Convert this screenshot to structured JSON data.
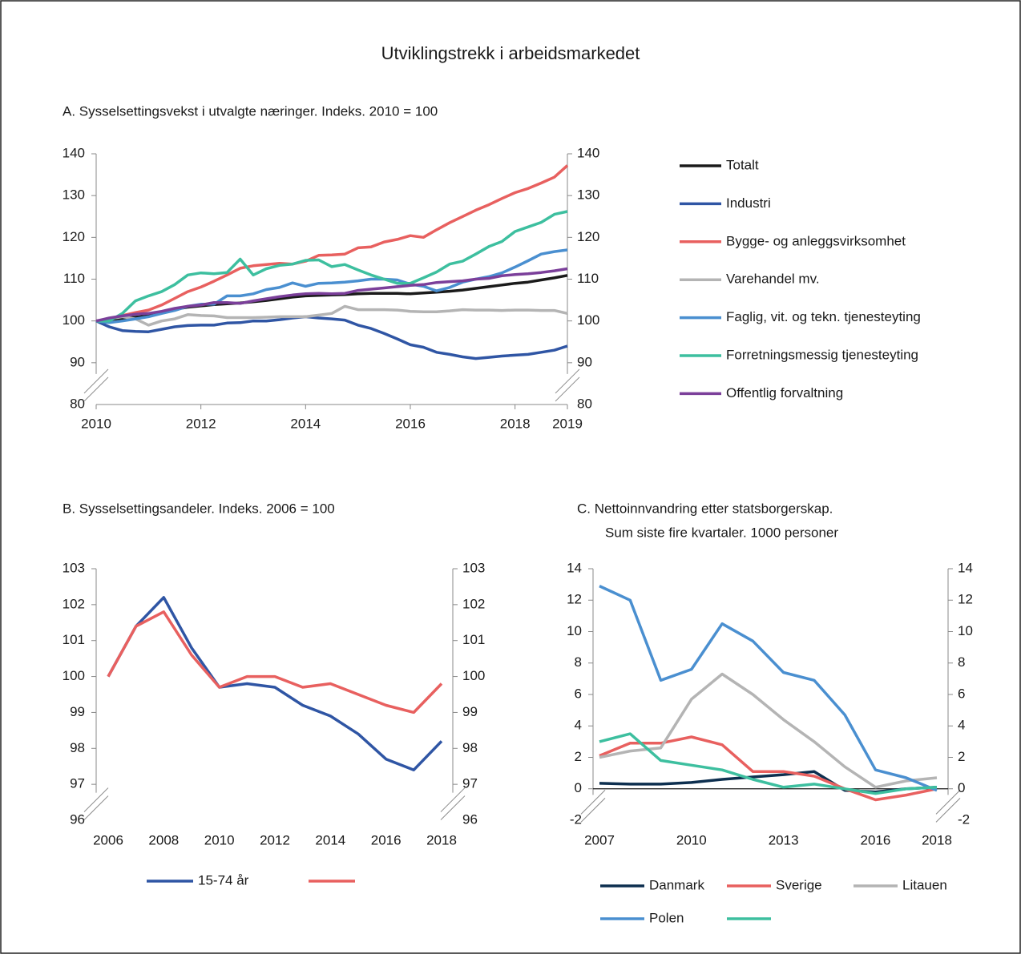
{
  "title": "Utviklingstrekk i arbeidsmarkedet",
  "chart_data": [
    {
      "type": "line",
      "title": "A.  Sysselsettingsvekst i utvalgte næringer. Indeks. 2010 = 100",
      "x": [
        2010,
        2010.25,
        2010.5,
        2010.75,
        2011,
        2011.25,
        2011.5,
        2011.75,
        2012,
        2012.25,
        2012.5,
        2012.75,
        2013,
        2013.25,
        2013.5,
        2013.75,
        2014,
        2014.25,
        2014.5,
        2014.75,
        2015,
        2015.25,
        2015.5,
        2015.75,
        2016,
        2016.25,
        2016.5,
        2016.75,
        2017,
        2017.25,
        2017.5,
        2017.75,
        2018,
        2018.25,
        2018.5,
        2018.75,
        2019
      ],
      "xlim": [
        2010,
        2019
      ],
      "xticks": [
        2010,
        2012,
        2014,
        2016,
        2018,
        2019
      ],
      "ylim": [
        80,
        140
      ],
      "yticks": [
        80,
        90,
        100,
        110,
        120,
        130,
        140
      ],
      "y2lim": [
        80,
        140
      ],
      "y2ticks": [
        80,
        90,
        100,
        110,
        120,
        130,
        140
      ],
      "series": [
        {
          "name": "Totalt",
          "color": "#1a1a1a",
          "values": [
            100,
            100.3,
            100.6,
            100.9,
            101.2,
            102,
            102.8,
            103.3,
            103.6,
            103.9,
            104.1,
            104.3,
            104.6,
            104.9,
            105.3,
            105.7,
            106,
            106.1,
            106.2,
            106.3,
            106.5,
            106.6,
            106.6,
            106.6,
            106.5,
            106.7,
            106.9,
            107.1,
            107.4,
            107.8,
            108.2,
            108.6,
            109,
            109.3,
            109.8,
            110.3,
            110.9
          ]
        },
        {
          "name": "Industri",
          "color": "#2f55a4",
          "values": [
            100,
            98.6,
            97.7,
            97.5,
            97.4,
            98,
            98.6,
            98.9,
            99,
            99,
            99.5,
            99.6,
            100,
            100,
            100.3,
            100.7,
            101,
            100.7,
            100.5,
            100.2,
            99,
            98.2,
            97,
            95.7,
            94.3,
            93.7,
            92.5,
            92,
            91.4,
            91,
            91.3,
            91.6,
            91.8,
            92,
            92.5,
            93,
            94
          ]
        },
        {
          "name": "Bygge- og anleggsvirksomhet",
          "color": "#e8605f",
          "values": [
            100,
            100.5,
            101.3,
            102,
            102.6,
            103.8,
            105.4,
            107,
            108.1,
            109.5,
            111,
            112.6,
            113.2,
            113.5,
            113.8,
            113.6,
            114.3,
            115.7,
            115.8,
            116,
            117.5,
            117.7,
            118.9,
            119.5,
            120.4,
            120,
            121.8,
            123.5,
            125,
            126.5,
            127.8,
            129.3,
            130.7,
            131.7,
            133,
            134.4,
            137.2
          ]
        },
        {
          "name": "Varehandel mv.",
          "color": "#b4b4b4",
          "values": [
            100,
            100.5,
            101,
            100.5,
            99,
            100,
            100.5,
            101.5,
            101.3,
            101.2,
            100.8,
            100.8,
            100.8,
            100.9,
            101,
            101,
            101,
            101.4,
            101.8,
            103.5,
            102.7,
            102.7,
            102.7,
            102.6,
            102.3,
            102.2,
            102.2,
            102.4,
            102.7,
            102.6,
            102.6,
            102.5,
            102.6,
            102.6,
            102.5,
            102.5,
            101.8
          ]
        },
        {
          "name": "Faglig, vit. og tekn. tjenesteyting",
          "color": "#4a8fd0",
          "values": [
            100,
            99.6,
            100,
            100.5,
            101,
            101.8,
            102.5,
            103.5,
            104,
            104,
            106,
            106,
            106.5,
            107.5,
            108,
            109.1,
            108.3,
            109,
            109.1,
            109.3,
            109.6,
            110,
            110,
            109.8,
            108.8,
            108.3,
            107.2,
            108,
            109.3,
            110,
            110.6,
            111.5,
            112.9,
            114.4,
            116,
            116.6,
            117
          ]
        },
        {
          "name": "Forretningsmessig tjenesteyting",
          "color": "#3dbf9f",
          "values": [
            100,
            100,
            101.8,
            104.8,
            106,
            107,
            108.7,
            111,
            111.5,
            111.3,
            111.6,
            114.8,
            111,
            112.5,
            113.3,
            113.6,
            114.5,
            114.6,
            113,
            113.5,
            112.2,
            111,
            110,
            109,
            109,
            110.3,
            111.7,
            113.6,
            114.3,
            116,
            117.8,
            119,
            121.4,
            122.5,
            123.6,
            125.5,
            126.2
          ]
        },
        {
          "name": "Offentlig forvaltning",
          "color": "#7b3f9a",
          "values": [
            100,
            100.7,
            101.2,
            101.6,
            101.8,
            102.3,
            103,
            103.5,
            103.8,
            104.4,
            104.4,
            104.2,
            104.8,
            105.3,
            105.8,
            106.2,
            106.5,
            106.6,
            106.5,
            106.6,
            107.3,
            107.6,
            107.9,
            108.2,
            108.5,
            108.7,
            109.2,
            109.4,
            109.6,
            110,
            110.2,
            110.8,
            111.1,
            111.3,
            111.6,
            112,
            112.5
          ]
        }
      ]
    },
    {
      "type": "line",
      "title": "B. Sysselsettingsandeler. Indeks. 2006 = 100",
      "x": [
        2006,
        2007,
        2008,
        2009,
        2010,
        2011,
        2012,
        2013,
        2014,
        2015,
        2016,
        2017,
        2018
      ],
      "xlim": [
        2006,
        2018
      ],
      "xticks": [
        2006,
        2008,
        2010,
        2012,
        2014,
        2016,
        2018
      ],
      "ylim": [
        96,
        103
      ],
      "yticks": [
        96,
        97,
        98,
        99,
        100,
        101,
        102,
        103
      ],
      "y2lim": [
        96,
        103
      ],
      "y2ticks": [
        96,
        97,
        98,
        99,
        100,
        101,
        102,
        103
      ],
      "series": [
        {
          "name": "15-74 år",
          "color": "#2f55a4",
          "values": [
            100,
            101.4,
            102.2,
            100.8,
            99.7,
            99.8,
            99.7,
            99.2,
            98.9,
            98.4,
            97.7,
            97.4,
            98.2
          ]
        },
        {
          "color": "#e8605f",
          "values": [
            100,
            101.4,
            101.8,
            100.6,
            99.7,
            100,
            100,
            99.7,
            99.8,
            99.5,
            99.2,
            99,
            99.8
          ]
        }
      ]
    },
    {
      "type": "line",
      "title": "C.  Nettoinnvandring      etter  statsborgerskap.",
      "subtitle": "Sum siste fire kvartaler. 1000 personer",
      "x": [
        2007,
        2008,
        2009,
        2010,
        2011,
        2012,
        2013,
        2014,
        2015,
        2016,
        2017,
        2018
      ],
      "xlim": [
        2007,
        2018
      ],
      "xticks": [
        2007,
        2010,
        2013,
        2016,
        2018
      ],
      "ylim": [
        -2,
        14
      ],
      "yticks": [
        -2,
        0,
        2,
        4,
        6,
        8,
        10,
        12,
        14
      ],
      "y2lim": [
        -2,
        14
      ],
      "y2ticks": [
        -2,
        0,
        2,
        4,
        6,
        8,
        10,
        12,
        14
      ],
      "series": [
        {
          "name": "Danmark",
          "color": "#0d2f4f",
          "values": [
            0.35,
            0.3,
            0.3,
            0.4,
            0.6,
            0.75,
            0.9,
            1.1,
            -0.1,
            -0.2,
            0,
            0.1
          ]
        },
        {
          "name": "Sverige",
          "color": "#e8605f",
          "values": [
            2.1,
            2.9,
            2.9,
            3.3,
            2.8,
            1.1,
            1.1,
            0.8,
            0,
            -0.7,
            -0.4,
            0
          ]
        },
        {
          "name": "Litauen",
          "color": "#b4b4b4",
          "values": [
            2,
            2.4,
            2.6,
            5.7,
            7.3,
            6,
            4.4,
            3,
            1.4,
            0.1,
            0.5,
            0.7
          ]
        },
        {
          "name": "Polen",
          "color": "#4a8fd0",
          "values": [
            12.9,
            12,
            6.9,
            7.6,
            10.5,
            9.4,
            7.4,
            6.9,
            4.7,
            1.2,
            0.7,
            -0.1
          ]
        },
        {
          "color": "#3dbf9f",
          "values": [
            3,
            3.5,
            1.8,
            1.5,
            1.2,
            0.6,
            0.1,
            0.3,
            0,
            -0.3,
            0,
            0.1
          ]
        }
      ]
    }
  ]
}
